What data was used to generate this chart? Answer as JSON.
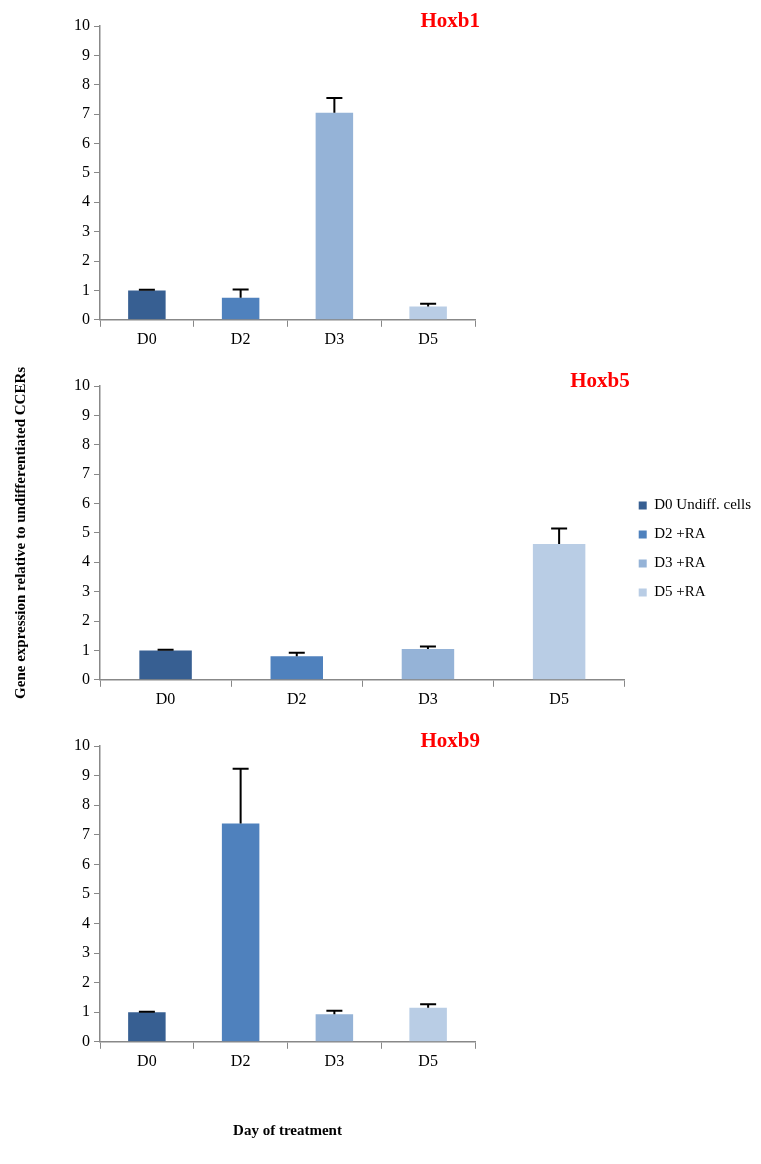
{
  "chart_data": [
    {
      "type": "bar",
      "title": "Hoxb1",
      "categories": [
        "D0",
        "D2",
        "D3",
        "D5"
      ],
      "ylim": [
        0,
        10
      ],
      "yticks": [
        0,
        1,
        2,
        3,
        4,
        5,
        6,
        7,
        8,
        9,
        10
      ],
      "grid": false,
      "series": [
        {
          "color": "#375f92",
          "values": [
            1.0,
            null,
            null,
            null
          ],
          "errors": [
            [
              1.0,
              1.02
            ],
            null,
            null,
            null
          ]
        },
        {
          "color": "#4f81bd",
          "values": [
            null,
            0.75,
            null,
            null
          ],
          "errors": [
            null,
            [
              0.75,
              1.03
            ],
            null,
            null
          ]
        },
        {
          "color": "#95b3d7",
          "values": [
            null,
            null,
            7.05,
            null
          ],
          "errors": [
            null,
            null,
            [
              7.05,
              7.55
            ],
            null
          ]
        },
        {
          "color": "#b9cde5",
          "values": [
            null,
            null,
            null,
            0.45
          ],
          "errors": [
            null,
            null,
            null,
            [
              0.45,
              0.55
            ]
          ]
        }
      ]
    },
    {
      "type": "bar",
      "title": "Hoxb5",
      "ylabel": "Gene expression relative to undifferentiated CCERs",
      "categories": [
        "D0",
        "D2",
        "D3",
        "D5"
      ],
      "ylim": [
        0,
        10
      ],
      "yticks": [
        0,
        1,
        2,
        3,
        4,
        5,
        6,
        7,
        8,
        9,
        10
      ],
      "grid": false,
      "legend": "right",
      "series": [
        {
          "name": "D0 Undiff. cells",
          "color": "#375f92",
          "values": [
            1.0,
            null,
            null,
            null
          ],
          "errors": [
            [
              1.0,
              1.02
            ],
            null,
            null,
            null
          ]
        },
        {
          "name": "D2 +RA",
          "color": "#4f81bd",
          "values": [
            null,
            0.8,
            null,
            null
          ],
          "errors": [
            null,
            [
              0.8,
              0.92
            ],
            null,
            null
          ]
        },
        {
          "name": "D3 +RA",
          "color": "#95b3d7",
          "values": [
            null,
            null,
            1.05,
            null
          ],
          "errors": [
            null,
            null,
            [
              1.05,
              1.13
            ],
            null
          ]
        },
        {
          "name": "D5 +RA",
          "color": "#b9cde5",
          "values": [
            null,
            null,
            null,
            4.62
          ],
          "errors": [
            null,
            null,
            null,
            [
              4.62,
              5.15
            ]
          ]
        }
      ]
    },
    {
      "type": "bar",
      "title": "Hoxb9",
      "xlabel": "Day of treatment",
      "categories": [
        "D0",
        "D2",
        "D3",
        "D5"
      ],
      "ylim": [
        0,
        10
      ],
      "yticks": [
        0,
        1,
        2,
        3,
        4,
        5,
        6,
        7,
        8,
        9,
        10
      ],
      "grid": false,
      "series": [
        {
          "color": "#375f92",
          "values": [
            1.0,
            null,
            null,
            null
          ],
          "errors": [
            [
              1.0,
              1.02
            ],
            null,
            null,
            null
          ]
        },
        {
          "color": "#4f81bd",
          "values": [
            null,
            7.38,
            null,
            null
          ],
          "errors": [
            null,
            [
              7.38,
              9.23
            ],
            null,
            null
          ]
        },
        {
          "color": "#95b3d7",
          "values": [
            null,
            null,
            0.93,
            null
          ],
          "errors": [
            null,
            null,
            [
              0.93,
              1.05
            ],
            null
          ]
        },
        {
          "color": "#b9cde5",
          "values": [
            null,
            null,
            null,
            1.15
          ],
          "errors": [
            null,
            null,
            null,
            [
              1.15,
              1.27
            ]
          ]
        }
      ]
    }
  ]
}
